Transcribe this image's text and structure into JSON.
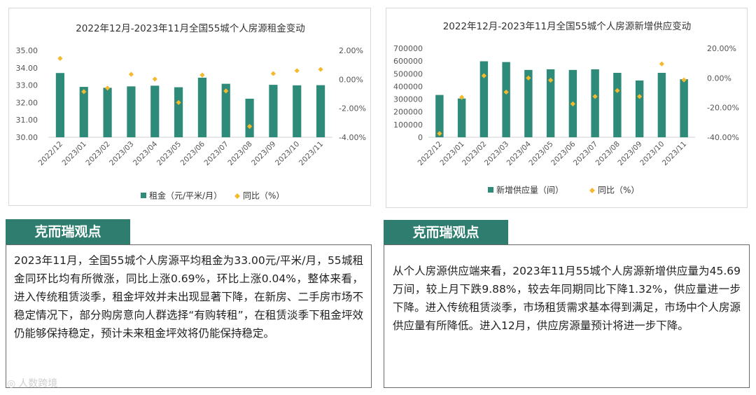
{
  "chart_data": [
    {
      "type": "bar",
      "title": "2022年12月-2023年11月全国55城个人房源租金变动",
      "categories": [
        "2022/12",
        "2023/01",
        "2023/02",
        "2023/03",
        "2023/04",
        "2023/05",
        "2023/06",
        "2023/07",
        "2023/08",
        "2023/09",
        "2023/10",
        "2023/11"
      ],
      "bar_series": {
        "name": "租金（元/平米/月）",
        "values": [
          33.7,
          32.9,
          32.85,
          32.93,
          32.97,
          32.88,
          33.43,
          33.08,
          32.22,
          33.02,
          32.99,
          33.0
        ],
        "color": "#2e8b7a"
      },
      "dot_series": {
        "name": "同比（%）",
        "values": [
          1.45,
          -0.85,
          -0.6,
          0.35,
          0.02,
          -1.6,
          0.3,
          -0.8,
          -3.25,
          0.4,
          0.6,
          0.69
        ],
        "color": "#f5b92e"
      },
      "y_left": {
        "range": [
          30,
          35
        ],
        "ticks": [
          "30.00",
          "31.00",
          "32.00",
          "33.00",
          "34.00",
          "35.00"
        ]
      },
      "y_right": {
        "range": [
          -4,
          2
        ],
        "ticks": [
          "-4.00%",
          "-2.00%",
          "0.00%",
          "2.00%"
        ]
      },
      "legend_position": "bottom",
      "grid": false
    },
    {
      "type": "bar",
      "title": "2022年12月-2023年11月全国55城个人房源新增供应变动",
      "categories": [
        "2022/12",
        "2023/01",
        "2023/02",
        "2023/03",
        "2023/04",
        "2023/05",
        "2023/06",
        "2023/07",
        "2023/08",
        "2023/09",
        "2023/10",
        "2023/11"
      ],
      "bar_series": {
        "name": "新增供应量（间）",
        "values": [
          333000,
          305000,
          598000,
          592000,
          530000,
          535000,
          530000,
          535000,
          507000,
          447000,
          507000,
          457000
        ],
        "color": "#2e8b7a"
      },
      "dot_series": {
        "name": "同比（%）",
        "values": [
          -37.5,
          -13.0,
          1.5,
          -9.5,
          0.0,
          -1.5,
          -17.5,
          -12.5,
          -8.5,
          -12.5,
          9.5,
          -1.32
        ],
        "color": "#f5b92e"
      },
      "y_left": {
        "range": [
          0,
          700000
        ],
        "ticks": [
          "0",
          "100000",
          "200000",
          "300000",
          "400000",
          "500000",
          "600000",
          "700000"
        ]
      },
      "y_right": {
        "range": [
          -40,
          20
        ],
        "ticks": [
          "-40.00%",
          "-20.00%",
          "0.00%",
          "20.00%"
        ]
      },
      "legend_position": "bottom",
      "grid": false
    }
  ],
  "panels": {
    "left": {
      "heading": "克而瑞观点",
      "body": "2023年11月，全国55城个人房源平均租金为33.00元/平米/月，55城租金同环比均有所微涨，同比上涨0.69%，环比上涨0.04%，整体来看，进入传统租赁淡季，租金坪效并未出现显著下降，在新房、二手房市场不稳定情况下，部分购房意向人群选择“有购转租”，在租赁淡季下租金坪效仍能够保持稳定，预计未来租金坪效将仍能保持稳定。"
    },
    "right": {
      "heading": "克而瑞观点",
      "body": "从个人房源供应端来看，2023年11月55城个人房源新增供应量为45.69万间，较上月下跌9.88%，较去年同期同比下降1.32%，供应量进一步下降。进入传统租赁淡季，市场租赁需求基本得到满足，市场中个人房源供应量有所降低。进入12月，供应房源量预计将进一步下降。"
    }
  },
  "watermark": {
    "icon": "wechat-icon",
    "text": "人数跨境"
  }
}
